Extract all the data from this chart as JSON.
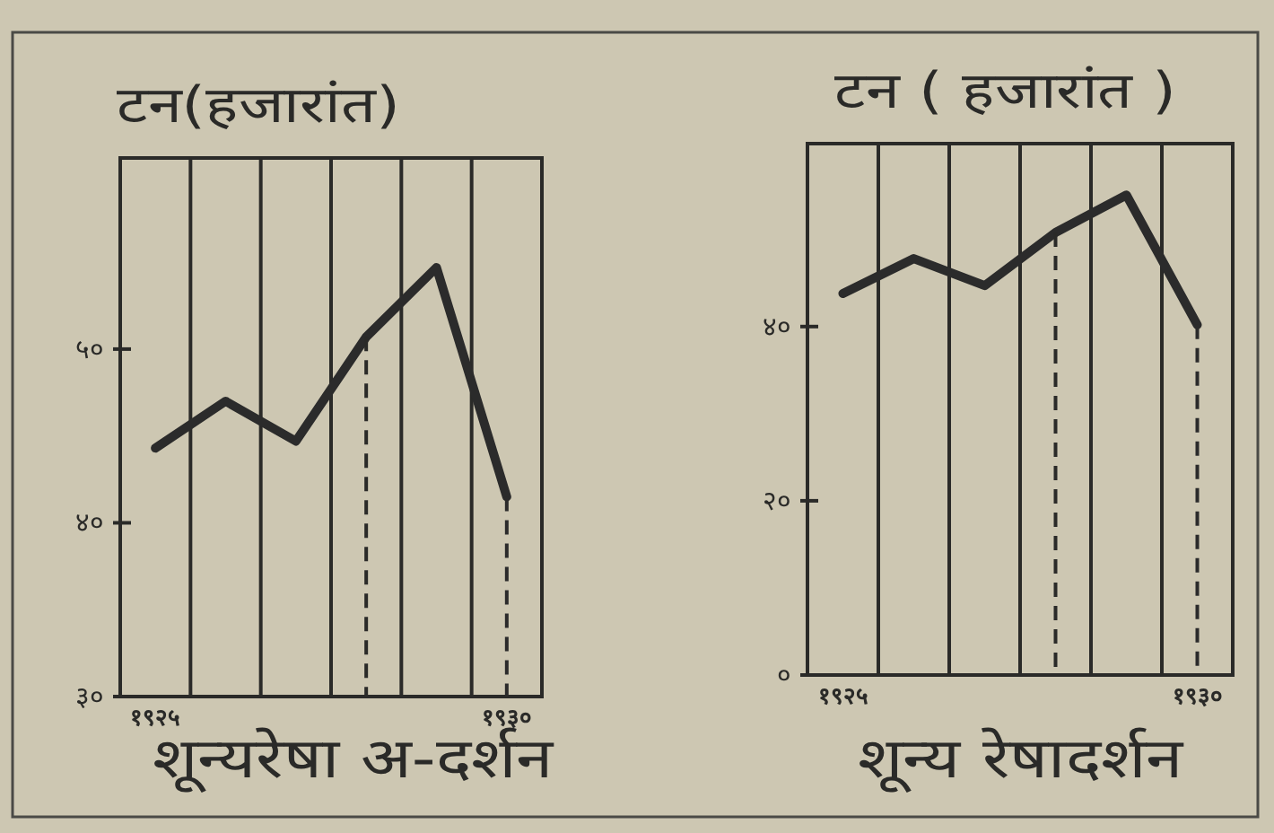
{
  "chart_data": [
    {
      "type": "line",
      "title": "टन(हजारांत)",
      "xlabel": "शून्यरेषा अ-दर्शन",
      "categories": [
        "१९२५",
        null,
        null,
        null,
        null,
        "१९३०"
      ],
      "series": [
        {
          "color": "#2b2b2b",
          "values": [
            44.3,
            47.0,
            44.7,
            50.7,
            54.7,
            41.5
          ]
        }
      ],
      "ylim": [
        30,
        61
      ],
      "yticks": [
        {
          "value": 30,
          "label": "३०"
        },
        {
          "value": 40,
          "label": "४०"
        },
        {
          "value": 50,
          "label": "५०"
        }
      ],
      "grid": "x",
      "ref_lines": [
        {
          "axis": "x",
          "value": "१९३०",
          "line_style": "dashed",
          "color": "#2b2b2b"
        }
      ]
    },
    {
      "type": "line",
      "title": "टन ( हजारांत )",
      "xlabel": "शून्य रेषादर्शन",
      "categories": [
        "१९२५",
        null,
        null,
        null,
        null,
        "१९३०"
      ],
      "series": [
        {
          "color": "#2b2b2b",
          "values": [
            43.8,
            47.8,
            44.7,
            50.8,
            55.1,
            40.2
          ]
        }
      ],
      "ylim": [
        0,
        61
      ],
      "yticks": [
        {
          "value": 0,
          "label": "०"
        },
        {
          "value": 20,
          "label": "२०"
        },
        {
          "value": 40,
          "label": "४०"
        }
      ],
      "grid": "x",
      "ref_lines": [
        {
          "axis": "x",
          "value": "१९३०",
          "line_style": "dashed",
          "color": "#2b2b2b"
        }
      ]
    }
  ]
}
